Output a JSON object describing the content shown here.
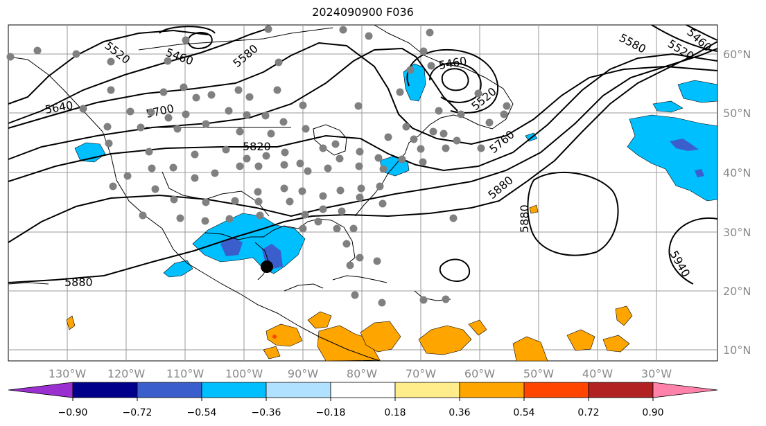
{
  "title": "2024090900 F036",
  "lon_labels": [
    "130°W",
    "120°W",
    "110°W",
    "100°W",
    "90°W",
    "80°W",
    "70°W",
    "60°W",
    "50°W",
    "40°W",
    "30°W"
  ],
  "lat_labels": [
    "60°N",
    "50°N",
    "40°N",
    "30°N",
    "20°N",
    "10°N"
  ],
  "contour_labels": [
    "5520",
    "5460",
    "5580",
    "5640",
    "5700",
    "5820",
    "5460",
    "5520",
    "5760",
    "5880",
    "5580",
    "5520",
    "5460",
    "5880",
    "5880",
    "5940"
  ],
  "colorbar": {
    "ticks": [
      "−0.90",
      "−0.72",
      "−0.54",
      "−0.36",
      "−0.18",
      "0.18",
      "0.36",
      "0.54",
      "0.72",
      "0.90"
    ],
    "colors": [
      "#9b30d0",
      "#00008b",
      "#3a5fcd",
      "#00bfff",
      "#b0e2ff",
      "#ffffff",
      "#ffec8b",
      "#ffa500",
      "#ff4500",
      "#b22222",
      "#ff82ab"
    ]
  },
  "storm_marker": {
    "lon": -94.5,
    "lat": 24.0
  }
}
